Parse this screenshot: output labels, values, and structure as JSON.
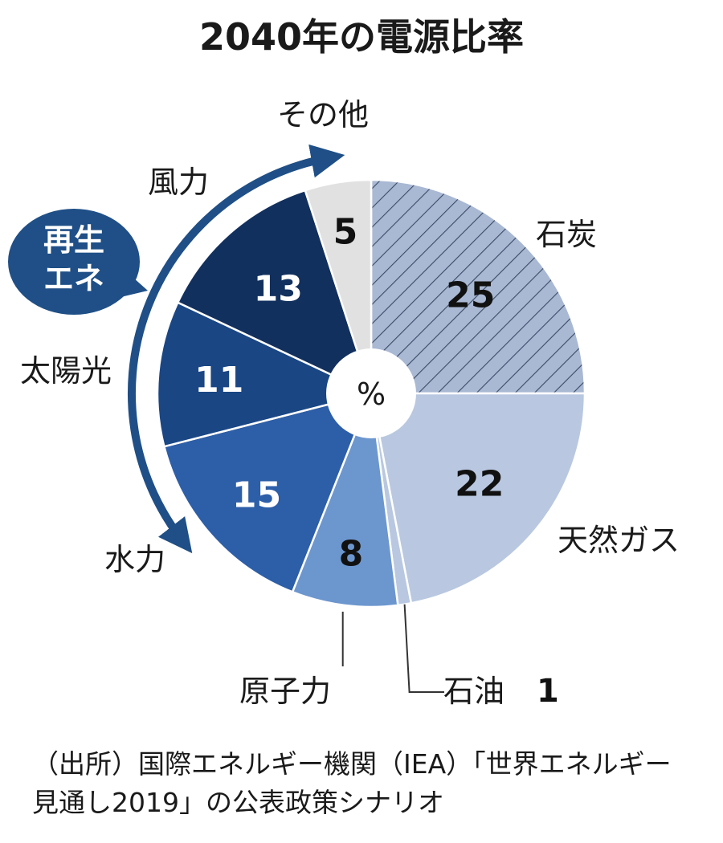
{
  "chart_data": {
    "type": "pie",
    "title": "2040年の電源比率",
    "unit": "%",
    "slices": [
      {
        "label": "石炭",
        "value": 25,
        "value_label": "25",
        "color": "#a9b8d3",
        "pattern": "hatch"
      },
      {
        "label": "天然ガス",
        "value": 22,
        "value_label": "22",
        "color": "#b9c8e0"
      },
      {
        "label": "石油",
        "value": 1,
        "value_label": "1",
        "color": "#b9c8e0"
      },
      {
        "label": "原子力",
        "value": 8,
        "value_label": "8",
        "color": "#6c96ce"
      },
      {
        "label": "水力",
        "value": 15,
        "value_label": "15",
        "color": "#2d5ea8"
      },
      {
        "label": "太陽光",
        "value": 11,
        "value_label": "11",
        "color": "#1a4684"
      },
      {
        "label": "風力",
        "value": 13,
        "value_label": "13",
        "color": "#12305e"
      },
      {
        "label": "その他",
        "value": 5,
        "value_label": "5",
        "color": "#e1e1e1"
      }
    ],
    "group_label": "再生エネ",
    "group_label_lines": [
      "再生",
      "エネ"
    ]
  },
  "source": {
    "line1": "（出所）国際エネルギー機関（IEA）「世界エネルギー",
    "line2": "見通し2019」の公表政策シナリオ"
  }
}
